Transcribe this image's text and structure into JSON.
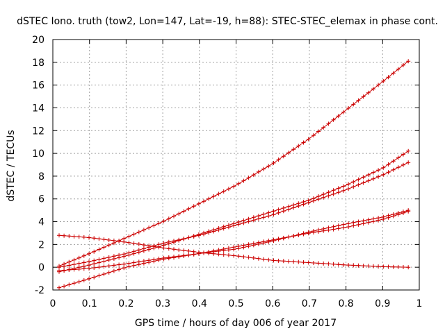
{
  "chart_data": {
    "type": "line",
    "title": "dSTEC Iono. truth (tow2, Lon=147, Lat=-19, h=88): STEC-STEC_elemax in phase cont.",
    "xlabel": "GPS time / hours of day 006 of year 2017",
    "ylabel": "dSTEC  / TECUs",
    "xlim": [
      0,
      1
    ],
    "ylim": [
      -2,
      20
    ],
    "xticks": [
      0,
      0.1,
      0.2,
      0.3,
      0.4,
      0.5,
      0.6,
      0.7,
      0.8,
      0.9,
      1
    ],
    "xtick_labels": [
      "0",
      "0.1",
      "0.2",
      "0.3",
      "0.4",
      "0.5",
      "0.6",
      "0.7",
      "0.8",
      "0.9",
      "1"
    ],
    "yticks": [
      -2,
      0,
      2,
      4,
      6,
      8,
      10,
      12,
      14,
      16,
      18,
      20
    ],
    "ytick_labels": [
      "-2",
      "0",
      "2",
      "4",
      "6",
      "8",
      "10",
      "12",
      "14",
      "16",
      "18",
      "20"
    ],
    "grid": true,
    "marker": "plus",
    "color": "#cc0000",
    "series": [
      {
        "x": [
          0.017,
          0.1,
          0.2,
          0.3,
          0.4,
          0.5,
          0.6,
          0.7,
          0.8,
          0.9,
          0.97
        ],
        "y": [
          0.1,
          1.2,
          2.6,
          4.0,
          5.6,
          7.2,
          9.1,
          11.3,
          13.8,
          16.3,
          18.1
        ]
      },
      {
        "x": [
          0.017,
          0.1,
          0.2,
          0.3,
          0.4,
          0.5,
          0.6,
          0.7,
          0.8,
          0.9,
          0.97
        ],
        "y": [
          -0.4,
          0.2,
          1.0,
          1.9,
          2.9,
          3.9,
          4.9,
          5.9,
          7.2,
          8.7,
          10.2
        ]
      },
      {
        "x": [
          0.017,
          0.1,
          0.2,
          0.3,
          0.4,
          0.5,
          0.6,
          0.7,
          0.8,
          0.9,
          0.97
        ],
        "y": [
          0.0,
          0.5,
          1.2,
          2.1,
          2.8,
          3.7,
          4.6,
          5.7,
          6.8,
          8.1,
          9.2
        ]
      },
      {
        "x": [
          0.017,
          0.1,
          0.2,
          0.3,
          0.4,
          0.5,
          0.6,
          0.7,
          0.8,
          0.9,
          0.97
        ],
        "y": [
          -1.8,
          -1.0,
          0.0,
          0.7,
          1.2,
          1.8,
          2.4,
          3.0,
          3.5,
          4.2,
          4.9
        ]
      },
      {
        "x": [
          0.017,
          0.1,
          0.2,
          0.3,
          0.4,
          0.5,
          0.6,
          0.7,
          0.8,
          0.9,
          0.97
        ],
        "y": [
          2.8,
          2.6,
          2.2,
          1.7,
          1.3,
          1.0,
          0.6,
          0.4,
          0.2,
          0.05,
          0.0
        ]
      },
      {
        "x": [
          0.017,
          0.1,
          0.2,
          0.3,
          0.4,
          0.5,
          0.6,
          0.7,
          0.8,
          0.9,
          0.97
        ],
        "y": [
          -0.3,
          -0.1,
          0.3,
          0.8,
          1.2,
          1.6,
          2.3,
          3.1,
          3.8,
          4.4,
          5.0
        ]
      }
    ]
  }
}
